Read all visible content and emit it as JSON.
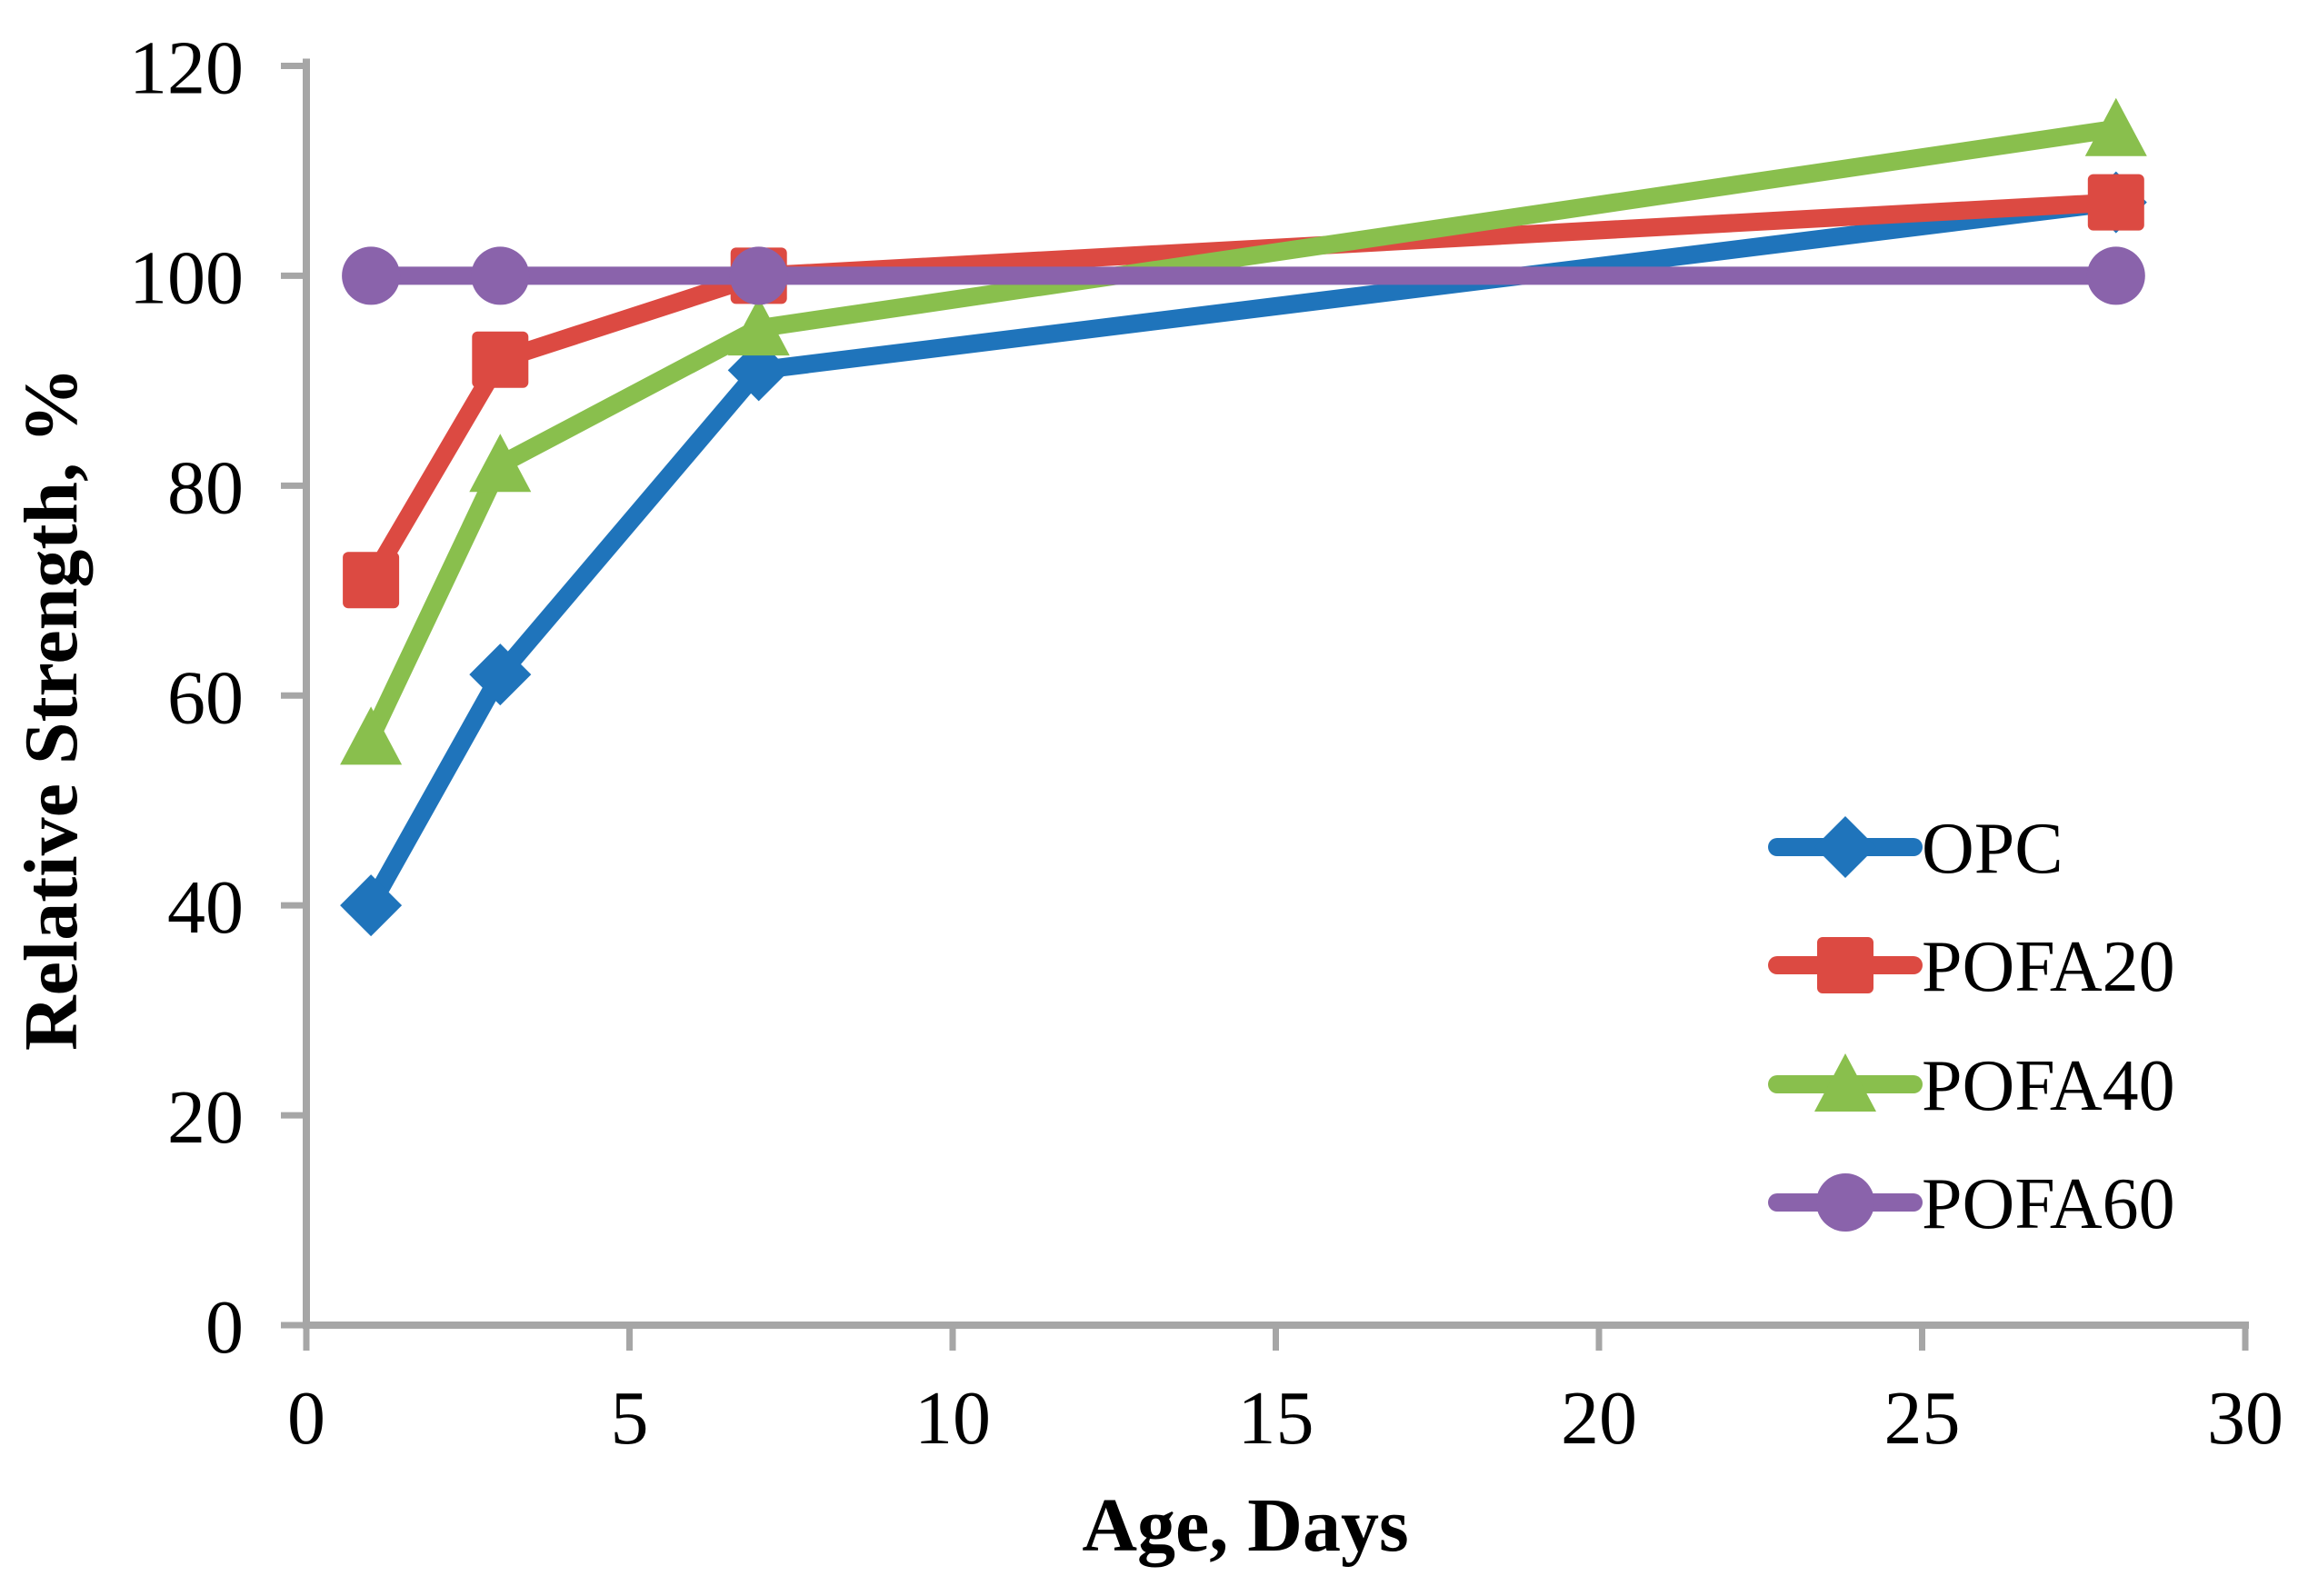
{
  "chart_data": {
    "type": "line",
    "title": "",
    "xlabel": "Age, Days",
    "ylabel": "Relative Strength, %",
    "x": [
      1,
      3,
      7,
      28
    ],
    "series": [
      {
        "name": "OPC",
        "marker": "diamond",
        "color": "#1F74BB",
        "values": [
          40,
          62,
          91,
          107
        ]
      },
      {
        "name": "POFA20",
        "marker": "square",
        "color": "#DC4A42",
        "values": [
          71,
          92,
          100,
          107
        ]
      },
      {
        "name": "POFA40",
        "marker": "triangle",
        "color": "#89BF4D",
        "values": [
          56,
          82,
          95,
          114
        ]
      },
      {
        "name": "POFA60",
        "marker": "circle",
        "color": "#8A63AB",
        "values": [
          100,
          100,
          100,
          100
        ]
      }
    ],
    "xlim": [
      0,
      30
    ],
    "ylim": [
      0,
      120
    ],
    "xticks": [
      0,
      5,
      10,
      15,
      20,
      25,
      30
    ],
    "yticks": [
      0,
      20,
      40,
      60,
      80,
      100,
      120
    ],
    "grid": false,
    "legend_position": "lower right",
    "axis_color": "#A6A6A6",
    "text_color": "#000000"
  }
}
